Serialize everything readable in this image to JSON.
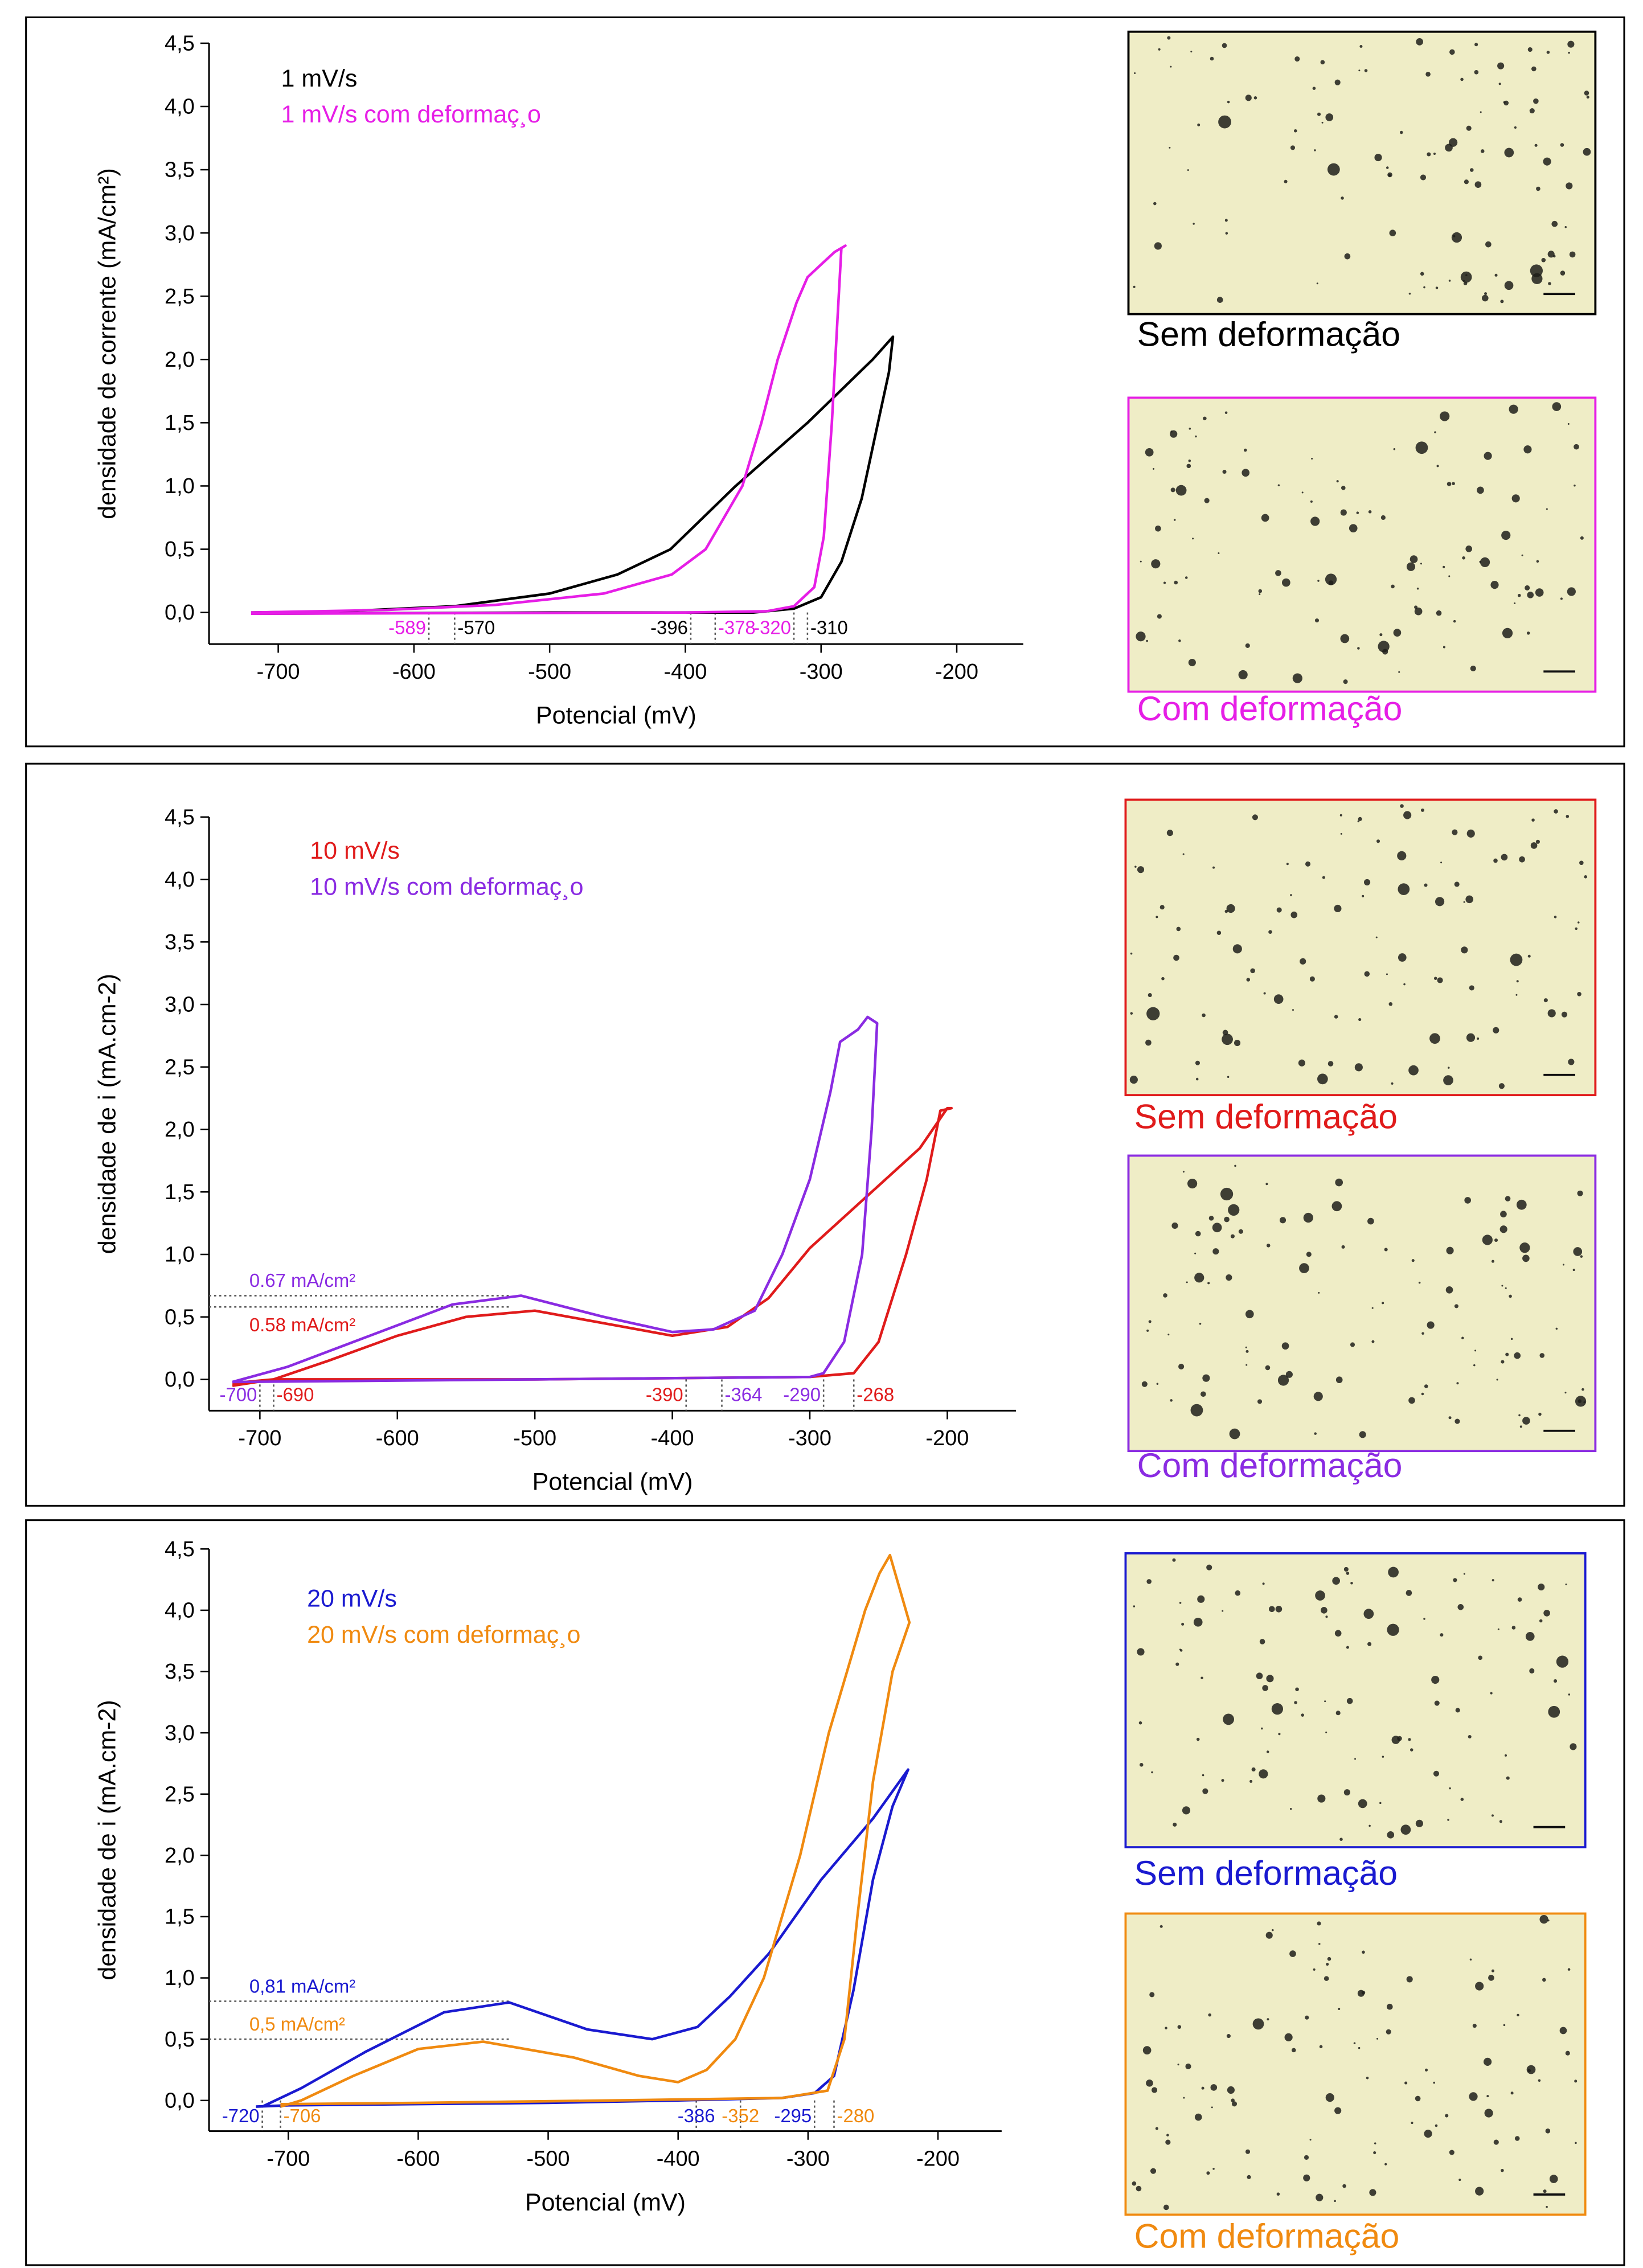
{
  "chart_data": [
    {
      "type": "line",
      "xlabel": "Potencial  (mV)",
      "ylabel": "densidade de corrente (mA/cm²)",
      "xlim": [
        -751,
        -151
      ],
      "ylim": [
        -0.25,
        4.5
      ],
      "xticks": [
        -700,
        -600,
        -500,
        -400,
        -300,
        -200
      ],
      "yticks": [
        {
          "value": 0,
          "label": "0,0"
        },
        {
          "value": 0.5,
          "label": "0,5"
        },
        {
          "value": 1,
          "label": "1,0"
        },
        {
          "value": 1.5,
          "label": "1,5"
        },
        {
          "value": 2,
          "label": "2,0"
        },
        {
          "value": 2.5,
          "label": "2,5"
        },
        {
          "value": 3,
          "label": "3,0"
        },
        {
          "value": 3.5,
          "label": "3,5"
        },
        {
          "value": 4,
          "label": "4,0"
        },
        {
          "value": 4.5,
          "label": "4,5"
        }
      ],
      "series": [
        {
          "name": "1 mV/s",
          "color": "#000000",
          "x": [
            -720,
            -500,
            -350,
            -320,
            -300,
            -285,
            -270,
            -258,
            -250,
            -247,
            -262,
            -310,
            -363,
            -411,
            -450,
            -500,
            -570,
            -650,
            -720
          ],
          "values": [
            -0.01,
            0,
            0,
            0.03,
            0.12,
            0.4,
            0.9,
            1.5,
            1.9,
            2.18,
            2.0,
            1.5,
            1.0,
            0.5,
            0.3,
            0.15,
            0.05,
            0.01,
            0
          ]
        },
        {
          "name": "1 mV/s com deformaç¸o",
          "color": "#e61ee6",
          "x": [
            -720,
            -400,
            -340,
            -320,
            -305,
            -298,
            -292,
            -288,
            -285,
            -282,
            -290,
            -300,
            -310,
            -318,
            -332,
            -344,
            -358,
            -385,
            -410,
            -460,
            -540,
            -620,
            -720
          ],
          "values": [
            -0.01,
            0,
            0.01,
            0.05,
            0.2,
            0.6,
            1.5,
            2.3,
            2.88,
            2.9,
            2.85,
            2.75,
            2.65,
            2.45,
            2.0,
            1.5,
            1.0,
            0.5,
            0.3,
            0.15,
            0.06,
            0.02,
            0
          ]
        }
      ],
      "x_markers": [
        {
          "value": -589,
          "color": "#e61ee6"
        },
        {
          "value": -570,
          "color": "#000000"
        },
        {
          "value": -396,
          "color": "#000000"
        },
        {
          "value": -378,
          "color": "#e61ee6"
        },
        {
          "value": -320,
          "color": "#e61ee6"
        },
        {
          "value": -310,
          "color": "#000000"
        }
      ],
      "y_markers": [],
      "micrographs": [
        {
          "caption": "Sem deformação",
          "color": "#000000"
        },
        {
          "caption": "Com deformação",
          "color": "#e61ee6"
        }
      ]
    },
    {
      "type": "line",
      "xlabel": "Potencial  (mV)",
      "ylabel": "densidade de i  (mA.cm-2)",
      "xlim": [
        -737,
        -150
      ],
      "ylim": [
        -0.25,
        4.5
      ],
      "xticks": [
        -700,
        -600,
        -500,
        -400,
        -300,
        -200
      ],
      "yticks": [
        {
          "value": 0,
          "label": "0,0"
        },
        {
          "value": 0.5,
          "label": "0,5"
        },
        {
          "value": 1,
          "label": "1,0"
        },
        {
          "value": 1.5,
          "label": "1,5"
        },
        {
          "value": 2,
          "label": "2,0"
        },
        {
          "value": 2.5,
          "label": "2,5"
        },
        {
          "value": 3,
          "label": "3,0"
        },
        {
          "value": 3.5,
          "label": "3,5"
        },
        {
          "value": 4,
          "label": "4,0"
        },
        {
          "value": 4.5,
          "label": "4,5"
        }
      ],
      "series": [
        {
          "name": "10 mV/s",
          "color": "#e01b1b",
          "x": [
            -720,
            -690,
            -500,
            -300,
            -268,
            -250,
            -230,
            -215,
            -205,
            -197,
            -200,
            -220,
            -260,
            -300,
            -330,
            -360,
            -400,
            -450,
            -500,
            -550,
            -600,
            -650,
            -690,
            -720
          ],
          "values": [
            -0.05,
            0,
            0,
            0.02,
            0.05,
            0.3,
            1.0,
            1.6,
            2.15,
            2.17,
            2.17,
            1.85,
            1.45,
            1.05,
            0.65,
            0.42,
            0.35,
            0.45,
            0.55,
            0.5,
            0.35,
            0.15,
            0,
            -0.03
          ]
        },
        {
          "name": "10 mV/s com deformaç¸o",
          "color": "#8a2be2",
          "x": [
            -720,
            -500,
            -300,
            -290,
            -275,
            -262,
            -255,
            -251,
            -258,
            -265,
            -278,
            -285,
            -300,
            -320,
            -340,
            -370,
            -400,
            -450,
            -510,
            -560,
            -620,
            -680,
            -720
          ],
          "values": [
            -0.02,
            0,
            0.02,
            0.05,
            0.3,
            1.0,
            2.0,
            2.85,
            2.9,
            2.8,
            2.7,
            2.3,
            1.6,
            1.0,
            0.55,
            0.4,
            0.38,
            0.5,
            0.67,
            0.6,
            0.35,
            0.1,
            -0.02
          ]
        }
      ],
      "x_markers": [
        {
          "value": -700,
          "color": "#8a2be2"
        },
        {
          "value": -690,
          "color": "#e01b1b"
        },
        {
          "value": -390,
          "color": "#e01b1b"
        },
        {
          "value": -364,
          "color": "#8a2be2"
        },
        {
          "value": -290,
          "color": "#8a2be2"
        },
        {
          "value": -268,
          "color": "#e01b1b"
        }
      ],
      "y_markers": [
        {
          "value": 0.67,
          "label": "0.67 mA/cm²",
          "color": "#8a2be2"
        },
        {
          "value": 0.58,
          "label": "0.58 mA/cm²",
          "color": "#e01b1b"
        }
      ],
      "micrographs": [
        {
          "caption": "Sem deformação",
          "color": "#e01b1b"
        },
        {
          "caption": "Com deformação",
          "color": "#8a2be2"
        }
      ]
    },
    {
      "type": "line",
      "xlabel": "Potencial  (mV)",
      "ylabel": "densidade de i  (mA.cm-2)",
      "xlim": [
        -761,
        -151
      ],
      "ylim": [
        -0.25,
        4.5
      ],
      "xticks": [
        -700,
        -600,
        -500,
        -400,
        -300,
        -200
      ],
      "yticks": [
        {
          "value": 0,
          "label": "0,0"
        },
        {
          "value": 0.5,
          "label": "0,5"
        },
        {
          "value": 1,
          "label": "1,0"
        },
        {
          "value": 1.5,
          "label": "1,5"
        },
        {
          "value": 2,
          "label": "2,0"
        },
        {
          "value": 2.5,
          "label": "2,5"
        },
        {
          "value": 3,
          "label": "3,0"
        },
        {
          "value": 3.5,
          "label": "3,5"
        },
        {
          "value": 4,
          "label": "4,0"
        },
        {
          "value": 4.5,
          "label": "4,5"
        }
      ],
      "series": [
        {
          "name": "20 mV/s",
          "color": "#1a1ad0",
          "x": [
            -725,
            -700,
            -500,
            -400,
            -320,
            -295,
            -280,
            -265,
            -250,
            -235,
            -223,
            -250,
            -290,
            -330,
            -360,
            -385,
            -420,
            -470,
            -530,
            -580,
            -640,
            -690,
            -720
          ],
          "values": [
            -0.05,
            -0.04,
            -0.02,
            0,
            0.02,
            0.06,
            0.2,
            0.9,
            1.8,
            2.4,
            2.7,
            2.3,
            1.8,
            1.2,
            0.85,
            0.6,
            0.5,
            0.58,
            0.8,
            0.72,
            0.4,
            0.1,
            -0.05
          ]
        },
        {
          "name": "20 mV/s com deformaç¸o",
          "color": "#f08a10",
          "x": [
            -706,
            -600,
            -450,
            -320,
            -285,
            -272,
            -262,
            -250,
            -235,
            -222,
            -237,
            -245,
            -256,
            -270,
            -284,
            -306,
            -334,
            -356,
            -378,
            -400,
            -430,
            -480,
            -550,
            -600,
            -650,
            -690,
            -706
          ],
          "values": [
            -0.03,
            -0.02,
            0,
            0.02,
            0.08,
            0.5,
            1.5,
            2.6,
            3.5,
            3.9,
            4.45,
            4.3,
            4.0,
            3.5,
            3.0,
            2.0,
            1.0,
            0.5,
            0.25,
            0.15,
            0.2,
            0.35,
            0.48,
            0.42,
            0.2,
            0,
            -0.05
          ]
        }
      ],
      "x_markers": [
        {
          "value": -720,
          "color": "#1a1ad0"
        },
        {
          "value": -706,
          "color": "#f08a10"
        },
        {
          "value": -386,
          "color": "#1a1ad0"
        },
        {
          "value": -352,
          "color": "#f08a10"
        },
        {
          "value": -295,
          "color": "#1a1ad0"
        },
        {
          "value": -280,
          "color": "#f08a10"
        }
      ],
      "y_markers": [
        {
          "value": 0.81,
          "label": "0,81 mA/cm²",
          "color": "#1a1ad0"
        },
        {
          "value": 0.5,
          "label": "0,5 mA/cm²",
          "color": "#f08a10"
        }
      ],
      "micrographs": [
        {
          "caption": "Sem deformação",
          "color": "#1a1ad0"
        },
        {
          "caption": "Com deformação",
          "color": "#f08a10"
        }
      ]
    }
  ]
}
